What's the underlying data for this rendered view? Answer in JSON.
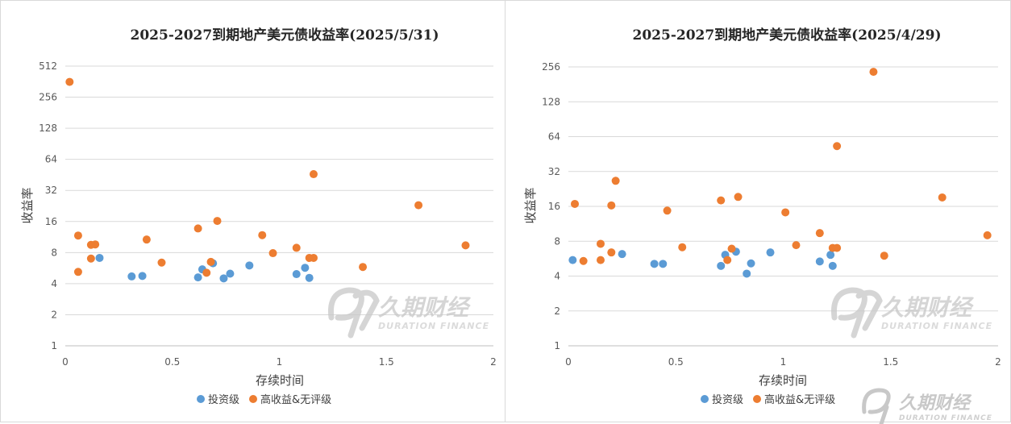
{
  "colors": {
    "investment_grade": "#5b9bd5",
    "high_yield": "#ed7d31",
    "grid": "#d9d9d9",
    "watermark": "#c8c8c8"
  },
  "watermark": {
    "name": "久期财经",
    "sub": "DURATION FINANCE"
  },
  "chart_data": [
    {
      "type": "scatter",
      "title": "2025-2027到期地产美元债收益率(2025/5/31)",
      "xlabel": "存续时间",
      "ylabel": "收益率",
      "xlim": [
        0,
        2
      ],
      "ylim": [
        1,
        512
      ],
      "yscale": "log2",
      "x_ticks": [
        "0",
        "0.5",
        "1",
        "1.5",
        "2"
      ],
      "y_ticks": [
        "1",
        "2",
        "4",
        "8",
        "16",
        "32",
        "64",
        "128",
        "256",
        "512"
      ],
      "grid": "horizontal",
      "legend_position": "bottom",
      "series": [
        {
          "name": "投资级",
          "points": [
            {
              "x": 0.16,
              "y": 7.1
            },
            {
              "x": 0.31,
              "y": 4.7
            },
            {
              "x": 0.36,
              "y": 4.75
            },
            {
              "x": 0.62,
              "y": 4.6
            },
            {
              "x": 0.64,
              "y": 5.5
            },
            {
              "x": 0.69,
              "y": 6.3
            },
            {
              "x": 0.74,
              "y": 4.5
            },
            {
              "x": 0.77,
              "y": 5.0
            },
            {
              "x": 0.86,
              "y": 6.0
            },
            {
              "x": 1.08,
              "y": 4.95
            },
            {
              "x": 1.12,
              "y": 5.7
            },
            {
              "x": 1.14,
              "y": 4.55
            }
          ]
        },
        {
          "name": "高收益&无评级",
          "points": [
            {
              "x": 0.02,
              "y": 360
            },
            {
              "x": 0.06,
              "y": 11.7
            },
            {
              "x": 0.06,
              "y": 5.2
            },
            {
              "x": 0.12,
              "y": 9.5
            },
            {
              "x": 0.12,
              "y": 7.0
            },
            {
              "x": 0.14,
              "y": 9.6
            },
            {
              "x": 0.38,
              "y": 10.7
            },
            {
              "x": 0.45,
              "y": 6.4
            },
            {
              "x": 0.62,
              "y": 13.7
            },
            {
              "x": 0.66,
              "y": 5.1
            },
            {
              "x": 0.68,
              "y": 6.5
            },
            {
              "x": 0.71,
              "y": 16.2
            },
            {
              "x": 0.92,
              "y": 11.8
            },
            {
              "x": 0.97,
              "y": 7.9
            },
            {
              "x": 1.08,
              "y": 8.9
            },
            {
              "x": 1.14,
              "y": 7.1
            },
            {
              "x": 1.16,
              "y": 7.1
            },
            {
              "x": 1.16,
              "y": 46
            },
            {
              "x": 1.39,
              "y": 5.8
            },
            {
              "x": 1.65,
              "y": 23
            },
            {
              "x": 1.87,
              "y": 9.4
            }
          ]
        }
      ]
    },
    {
      "type": "scatter",
      "title": "2025-2027到期地产美元债收益率(2025/4/29)",
      "xlabel": "存续时间",
      "ylabel": "收益率",
      "xlim": [
        0,
        2
      ],
      "ylim": [
        1,
        256
      ],
      "yscale": "log2",
      "x_ticks": [
        "0",
        "0.5",
        "1",
        "1.5",
        "2"
      ],
      "y_ticks": [
        "1",
        "2",
        "4",
        "8",
        "16",
        "32",
        "64",
        "128",
        "256"
      ],
      "grid": "horizontal",
      "legend_position": "bottom",
      "series": [
        {
          "name": "投资级",
          "points": [
            {
              "x": 0.02,
              "y": 5.5
            },
            {
              "x": 0.25,
              "y": 6.2
            },
            {
              "x": 0.4,
              "y": 5.1
            },
            {
              "x": 0.44,
              "y": 5.1
            },
            {
              "x": 0.71,
              "y": 4.9
            },
            {
              "x": 0.73,
              "y": 6.1
            },
            {
              "x": 0.78,
              "y": 6.5
            },
            {
              "x": 0.83,
              "y": 4.2
            },
            {
              "x": 0.85,
              "y": 5.15
            },
            {
              "x": 0.94,
              "y": 6.4
            },
            {
              "x": 1.17,
              "y": 5.35
            },
            {
              "x": 1.22,
              "y": 6.1
            },
            {
              "x": 1.23,
              "y": 4.9
            }
          ]
        },
        {
          "name": "高收益&无评级",
          "points": [
            {
              "x": 0.03,
              "y": 16.8
            },
            {
              "x": 0.07,
              "y": 5.4
            },
            {
              "x": 0.15,
              "y": 7.6
            },
            {
              "x": 0.15,
              "y": 5.5
            },
            {
              "x": 0.2,
              "y": 16.3
            },
            {
              "x": 0.2,
              "y": 6.4
            },
            {
              "x": 0.22,
              "y": 26.6
            },
            {
              "x": 0.46,
              "y": 14.7
            },
            {
              "x": 0.53,
              "y": 7.1
            },
            {
              "x": 0.71,
              "y": 18.0
            },
            {
              "x": 0.74,
              "y": 5.5
            },
            {
              "x": 0.76,
              "y": 6.9
            },
            {
              "x": 0.79,
              "y": 19.3
            },
            {
              "x": 1.01,
              "y": 14.2
            },
            {
              "x": 1.06,
              "y": 7.4
            },
            {
              "x": 1.17,
              "y": 9.4
            },
            {
              "x": 1.23,
              "y": 7.0
            },
            {
              "x": 1.25,
              "y": 7.0
            },
            {
              "x": 1.25,
              "y": 53
            },
            {
              "x": 1.42,
              "y": 232
            },
            {
              "x": 1.47,
              "y": 6.0
            },
            {
              "x": 1.74,
              "y": 19.1
            },
            {
              "x": 1.95,
              "y": 9.0
            }
          ]
        }
      ]
    }
  ]
}
